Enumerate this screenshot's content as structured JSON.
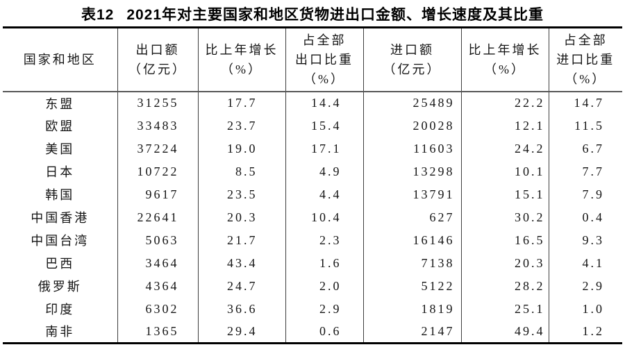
{
  "title": {
    "tag": "表12",
    "text": "2021年对主要国家和地区货物进出口金额、增长速度及其比重"
  },
  "table": {
    "columns": [
      {
        "name": "国家和地区",
        "lines": [
          "国家和地区"
        ]
      },
      {
        "name": "出口额（亿元）",
        "lines": [
          "出口额",
          "（亿元）"
        ]
      },
      {
        "name": "比上年增长（%）",
        "lines": [
          "比上年增长",
          "（%）"
        ]
      },
      {
        "name": "占全部出口比重（%）",
        "lines": [
          "占全部",
          "出口比重",
          "（%）"
        ]
      },
      {
        "name": "进口额（亿元）",
        "lines": [
          "进口额",
          "（亿元）"
        ]
      },
      {
        "name": "比上年增长（%）",
        "lines": [
          "比上年增长",
          "（%）"
        ]
      },
      {
        "name": "占全部进口比重（%）",
        "lines": [
          "占全部",
          "进口比重",
          "（%）"
        ]
      }
    ],
    "rows": [
      [
        "东盟",
        "31255",
        "17.7",
        "14.4",
        "25489",
        "22.2",
        "14.7"
      ],
      [
        "欧盟",
        "33483",
        "23.7",
        "15.4",
        "20028",
        "12.1",
        "11.5"
      ],
      [
        "美国",
        "37224",
        "19.0",
        "17.1",
        "11603",
        "24.2",
        "6.7"
      ],
      [
        "日本",
        "10722",
        "8.5",
        "4.9",
        "13298",
        "10.1",
        "7.7"
      ],
      [
        "韩国",
        "9617",
        "23.5",
        "4.4",
        "13791",
        "15.1",
        "7.9"
      ],
      [
        "中国香港",
        "22641",
        "20.3",
        "10.4",
        "627",
        "30.2",
        "0.4"
      ],
      [
        "中国台湾",
        "5063",
        "21.7",
        "2.3",
        "16146",
        "16.5",
        "9.3"
      ],
      [
        "巴西",
        "3464",
        "43.4",
        "1.6",
        "7138",
        "20.3",
        "4.1"
      ],
      [
        "俄罗斯",
        "4364",
        "24.7",
        "2.0",
        "5122",
        "28.2",
        "2.9"
      ],
      [
        "印度",
        "6302",
        "36.6",
        "2.9",
        "1819",
        "25.1",
        "1.0"
      ],
      [
        "南非",
        "1365",
        "29.4",
        "0.6",
        "2147",
        "49.4",
        "1.2"
      ]
    ]
  },
  "colors": {
    "text": "#141414",
    "border_heavy": "#000000",
    "border_header": "#565656",
    "border_column": "#3d3d3d",
    "background": "#ffffff"
  }
}
